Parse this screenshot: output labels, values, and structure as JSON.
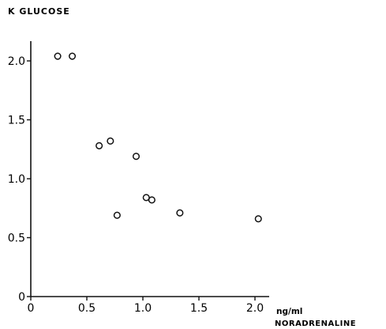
{
  "chart_data": {
    "type": "scatter",
    "ylabel": "K GLUCOSE",
    "xlabel": "NORADRENALINE",
    "xunit": "ng/ml",
    "xlim": [
      0,
      2.0
    ],
    "ylim": [
      0,
      2.0
    ],
    "xticks": [
      0,
      0.5,
      1.0,
      1.5,
      2.0
    ],
    "xtick_labels": [
      "0",
      "0.5",
      "1.0",
      "1.5",
      "2.0"
    ],
    "yticks": [
      0,
      0.5,
      1.0,
      1.5,
      2.0
    ],
    "ytick_labels": [
      "0",
      "0.5",
      "1.0",
      "1.5",
      "2.0"
    ],
    "grid": false,
    "marker": "open-circle",
    "x": [
      0.24,
      0.37,
      0.61,
      0.71,
      0.77,
      0.94,
      1.03,
      1.08,
      1.33,
      2.03
    ],
    "y": [
      2.04,
      2.04,
      1.28,
      1.32,
      0.69,
      1.19,
      0.84,
      0.82,
      0.71,
      0.66
    ]
  }
}
